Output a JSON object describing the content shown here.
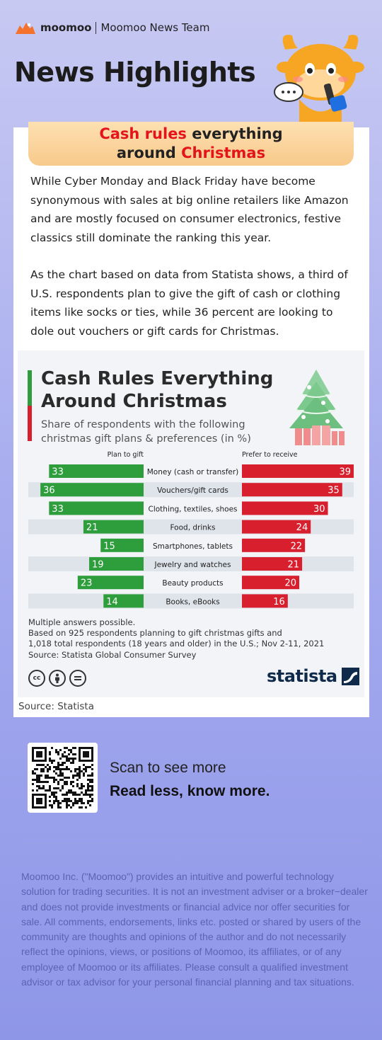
{
  "header": {
    "brand": "moomoo",
    "team": "Moomoo News Team",
    "title": "News Highlights"
  },
  "article": {
    "headline_line1_red": "Cash rules",
    "headline_line1_black": " everything",
    "headline_line2_black": "around ",
    "headline_line2_red": "Christmas",
    "paragraph1": "While Cyber Monday and Black Friday have become synonymous with sales at big online retailers like Amazon and are mostly focused on consumer electronics, festive classics still dominate the ranking this year.",
    "paragraph2": "As the chart based on data from Statista shows, a third of U.S. respondents plan to give the gift of cash or clothing items like socks or ties, while 36 percent are looking to dole out vouchers or gift cards for Christmas.",
    "source": "Source: Statista"
  },
  "figure": {
    "title_line1": "Cash Rules Everything",
    "title_line2": "Around Christmas",
    "subtitle_line1": "Share of respondents with the following",
    "subtitle_line2": "christmas gift plans & preferences (in %)",
    "note1": "Multiple answers possible.",
    "note2": "Based on 925 respondents planning to gift christmas gifts and",
    "note3": "1,018 total respondents (18 years and older) in the U.S.; Nov 2-11, 2021",
    "source": "Source: Statista Global Consumer Survey",
    "cc_icons": [
      "cc",
      "by",
      "nd"
    ],
    "publisher": "statista"
  },
  "chart_data": {
    "type": "bar",
    "orientation": "horizontal-diverging",
    "categories": [
      "Money (cash or transfer)",
      "Vouchers/gift cards",
      "Clothing, textiles, shoes",
      "Food, drinks",
      "Smartphones, tablets",
      "Jewelry and watches",
      "Beauty products",
      "Books, eBooks"
    ],
    "series": [
      {
        "name": "Plan to gift",
        "values": [
          33,
          36,
          33,
          21,
          15,
          19,
          23,
          14
        ],
        "color": "#2e9e3d"
      },
      {
        "name": "Prefer to receive",
        "values": [
          39,
          35,
          30,
          24,
          22,
          21,
          20,
          16
        ],
        "color": "#d71f2e"
      }
    ],
    "xlim": [
      0,
      39
    ]
  },
  "footer": {
    "scan": "Scan to see more",
    "tagline": "Read less, know more.",
    "disclaimer": "Moomoo Inc. (\"Moomoo\") provides an intuitive and powerful technology solution for trading securities. It is not an investment adviser or a broker−dealer and does not provide investments or financial advice nor offer securities for sale. All comments, endorsements, links etc. posted or shared by users of the community are thoughts and opinions of the author and do not necessarily reflect the opinions, views, or positions of Moomoo, its affiliates, or of any employee of Moomoo or its affiliates. Please consult a qualified investment advisor or tax advisor for your personal financial planning and tax situations."
  },
  "colors": {
    "accent_red": "#e3151a",
    "green": "#2e9e3d",
    "red": "#d71f2e",
    "banner": "#f8c98a"
  }
}
